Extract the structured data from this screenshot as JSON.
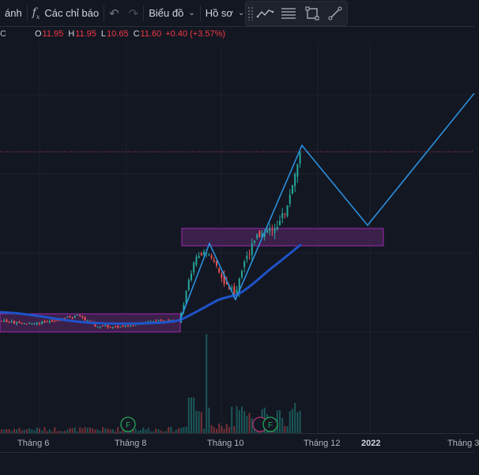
{
  "toolbar": {
    "cut_label": "ánh",
    "indicators_label": "Các chỉ báo",
    "chart_type_label": "Biểu đồ",
    "profile_label": "Hồ sơ",
    "icons": [
      "fx-icon",
      "undo-icon",
      "redo-icon",
      "chevron-down-icon",
      "trend-line-icon",
      "fib-lines-icon",
      "rectangle-icon",
      "line-tool-icon"
    ]
  },
  "legend": {
    "partial_symbol": "C",
    "open_label": "O",
    "open": "11.95",
    "high_label": "H",
    "high": "11.95",
    "low_label": "L",
    "low": "10.65",
    "close_label": "C",
    "close": "11.60",
    "change": "+0.40 (+3.57%)"
  },
  "x_axis": [
    "Tháng 6",
    "Tháng 8",
    "Tháng 10",
    "Tháng 12",
    "2022",
    "Tháng 3"
  ],
  "events": [
    "F",
    "F",
    "F"
  ],
  "colors": {
    "background": "#131722",
    "up": "#26a69a",
    "down": "#ef5350",
    "ma_line": "#1e53c8",
    "zigzag": "#2a8fdc",
    "zone_fill": "#4a2458",
    "zone_border": "#9c27b0"
  }
}
